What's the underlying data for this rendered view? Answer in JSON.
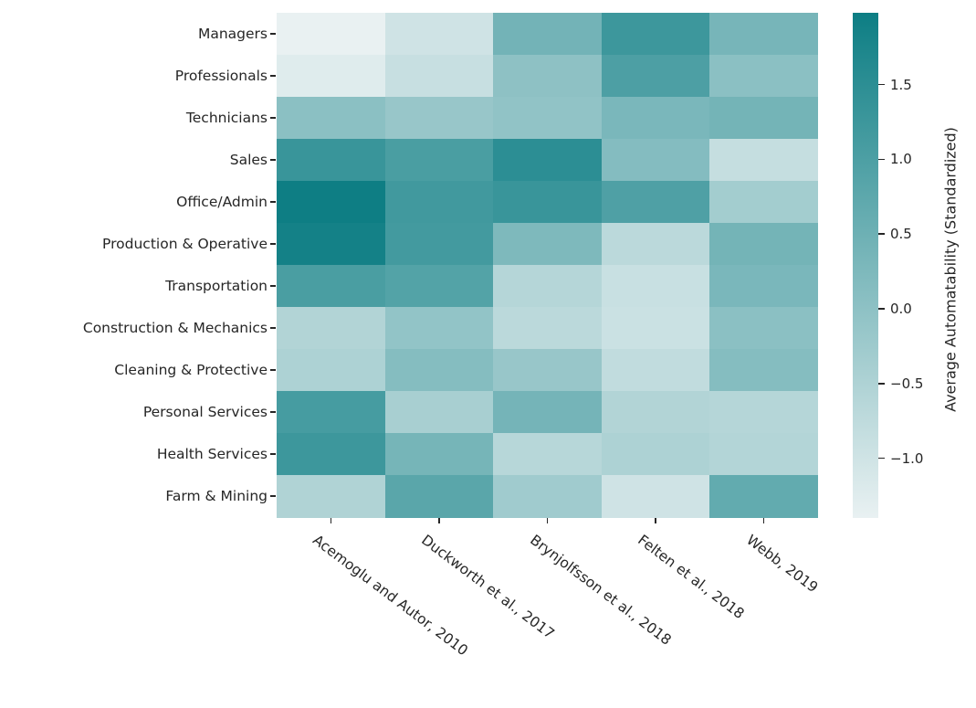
{
  "text_color": "#262626",
  "chart_data": {
    "type": "heatmap",
    "title": "",
    "rows": [
      "Managers",
      "Professionals",
      "Technicians",
      "Sales",
      "Office/Admin",
      "Production & Operative",
      "Transportation",
      "Construction & Mechanics",
      "Cleaning & Protective",
      "Personal Services",
      "Health Services",
      "Farm & Mining"
    ],
    "columns": [
      "Acemoglu and Autor, 2010",
      "Duckworth et al., 2017",
      "Brynjolfsson et al., 2018",
      "Felten et al., 2018",
      "Webb, 2019"
    ],
    "values": [
      [
        -1.4,
        -1.0,
        0.42,
        1.25,
        0.35
      ],
      [
        -1.25,
        -0.88,
        0.0,
        1.0,
        0.05
      ],
      [
        0.05,
        -0.15,
        -0.05,
        0.3,
        0.4
      ],
      [
        1.3,
        1.05,
        1.5,
        0.15,
        -0.85
      ],
      [
        1.97,
        1.18,
        1.3,
        0.97,
        -0.33
      ],
      [
        1.88,
        1.15,
        0.25,
        -0.7,
        0.4
      ],
      [
        1.05,
        0.9,
        -0.6,
        -0.9,
        0.3
      ],
      [
        -0.55,
        -0.07,
        -0.7,
        -0.93,
        0.05
      ],
      [
        -0.48,
        0.14,
        -0.15,
        -0.78,
        0.14
      ],
      [
        1.1,
        -0.4,
        0.38,
        -0.55,
        -0.6
      ],
      [
        1.25,
        0.37,
        -0.63,
        -0.48,
        -0.57
      ],
      [
        -0.52,
        0.8,
        -0.28,
        -1.0,
        0.67
      ]
    ],
    "colorbar": {
      "label": "Average Automatability (Standardized)",
      "ticks": [
        1.5,
        1.0,
        0.5,
        0.0,
        -0.5,
        -1.0
      ],
      "tick_labels": [
        "1.5",
        "1.0",
        "0.5",
        "0.0",
        "−0.5",
        "−1.0"
      ],
      "vmin": -1.4,
      "vmax": 1.98,
      "color_min": "#e9f1f2",
      "color_max": "#0d7e84"
    },
    "layout": {
      "legend": "colorbar-right",
      "grid": false,
      "x_tick_rotation_deg": 37
    }
  }
}
